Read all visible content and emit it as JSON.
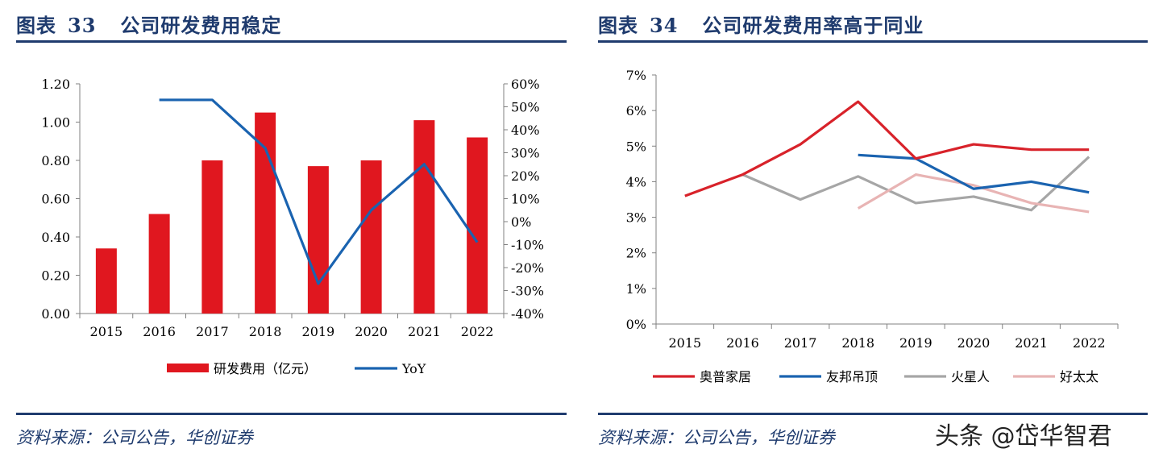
{
  "left": {
    "title_prefix": "图表",
    "title_num": "33",
    "title_text": "公司研发费用稳定",
    "source": "资料来源：公司公告，华创证券"
  },
  "right": {
    "title_prefix": "图表",
    "title_num": "34",
    "title_text": "公司研发费用率高于同业",
    "source": "资料来源：公司公告，华创证券"
  },
  "watermark": "头条 @岱华智君",
  "colors": {
    "title": "#1f3b6e",
    "bar": "#e0171f",
    "yoy": "#1a63b0",
    "red": "#d8222a",
    "blue": "#1a63b0",
    "gray": "#a6a6a6",
    "pink": "#e8b4b4"
  },
  "chart_data": [
    {
      "type": "bar",
      "title": "公司研发费用稳定",
      "categories": [
        "2015",
        "2016",
        "2017",
        "2018",
        "2019",
        "2020",
        "2021",
        "2022"
      ],
      "series": [
        {
          "name": "研发费用（亿元）",
          "kind": "bar",
          "axis": "left",
          "values": [
            0.34,
            0.52,
            0.8,
            1.05,
            0.77,
            0.8,
            1.01,
            0.92
          ]
        },
        {
          "name": "YoY",
          "kind": "line",
          "axis": "right",
          "values": [
            null,
            53.0,
            53.0,
            32.0,
            -27.0,
            5.0,
            25.0,
            -9.0
          ]
        }
      ],
      "ylim": [
        0,
        1.2
      ],
      "yticks": [
        "0.00",
        "0.20",
        "0.40",
        "0.60",
        "0.80",
        "1.00",
        "1.20"
      ],
      "y2lim": [
        -40,
        60
      ],
      "y2ticks": [
        "-40%",
        "-30%",
        "-20%",
        "-10%",
        "0%",
        "10%",
        "20%",
        "30%",
        "40%",
        "50%",
        "60%"
      ],
      "legend": [
        "研发费用（亿元）",
        "YoY"
      ],
      "legend_position": "bottom"
    },
    {
      "type": "line",
      "title": "公司研发费用率高于同业",
      "categories": [
        "2015",
        "2016",
        "2017",
        "2018",
        "2019",
        "2020",
        "2021",
        "2022"
      ],
      "series": [
        {
          "name": "奥普家居",
          "values": [
            3.6,
            4.2,
            5.05,
            6.25,
            4.65,
            5.05,
            4.9,
            4.9
          ]
        },
        {
          "name": "友邦吊顶",
          "values": [
            null,
            null,
            null,
            4.75,
            4.65,
            3.8,
            4.0,
            3.7
          ]
        },
        {
          "name": "火星人",
          "values": [
            null,
            4.2,
            3.5,
            4.15,
            3.4,
            3.58,
            3.2,
            4.7
          ]
        },
        {
          "name": "好太太",
          "values": [
            null,
            null,
            null,
            3.25,
            4.2,
            3.9,
            3.4,
            3.15
          ]
        }
      ],
      "ylim": [
        0,
        7
      ],
      "yticks": [
        "0%",
        "1%",
        "2%",
        "3%",
        "4%",
        "5%",
        "6%",
        "7%"
      ],
      "legend": [
        "奥普家居",
        "友邦吊顶",
        "火星人",
        "好太太"
      ],
      "legend_position": "bottom"
    }
  ]
}
